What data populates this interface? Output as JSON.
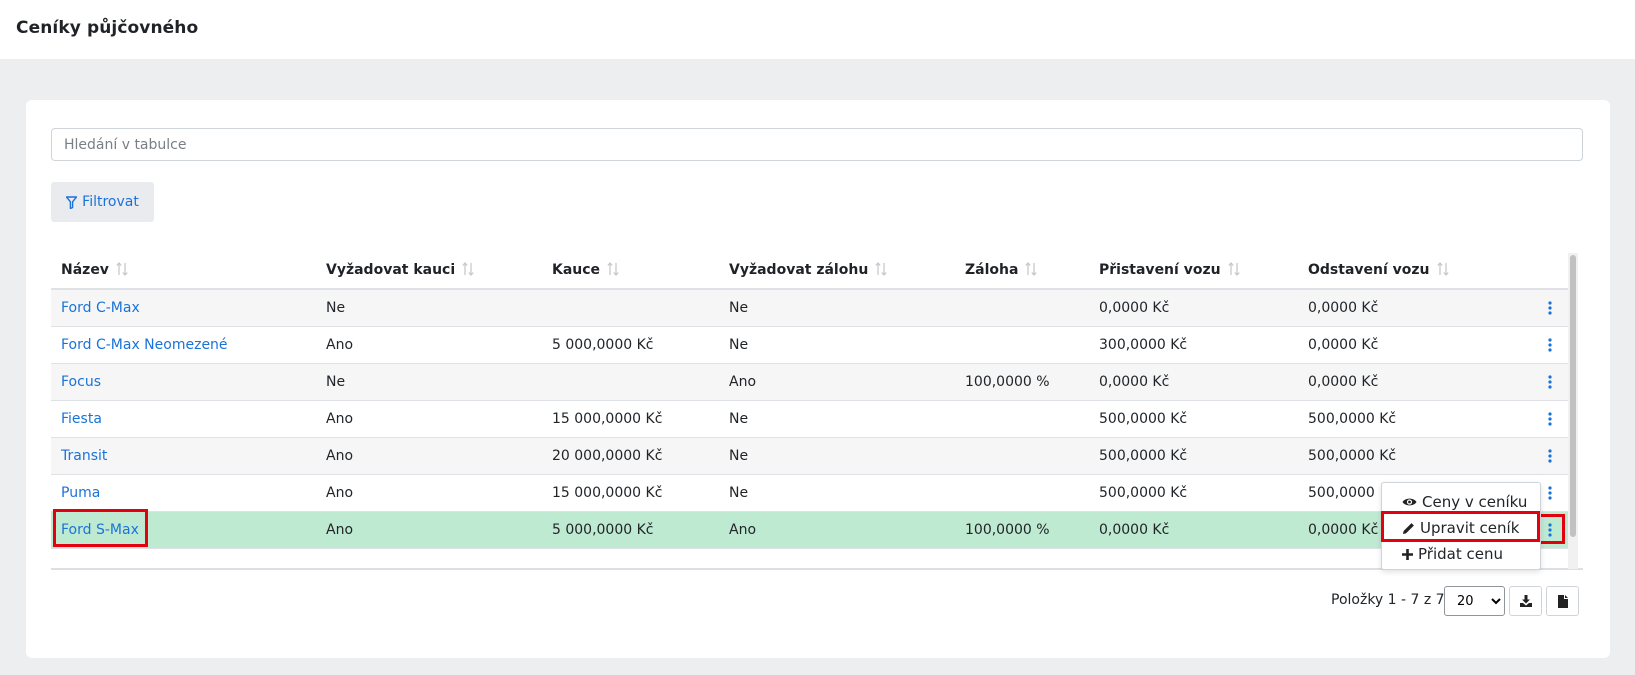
{
  "page": {
    "title": "Ceníky půjčovného"
  },
  "search": {
    "placeholder": "Hledání v tabulce"
  },
  "filter": {
    "label": "Filtrovat"
  },
  "table": {
    "headers": [
      "Název",
      "Vyžadovat kauci",
      "Kauce",
      "Vyžadovat zálohu",
      "Záloha",
      "Přistavení vozu",
      "Odstavení vozu"
    ],
    "rows": [
      [
        "Ford C-Max",
        "Ne",
        "",
        "Ne",
        "",
        "0,0000 Kč",
        "0,0000 Kč"
      ],
      [
        "Ford C-Max Neomezené",
        "Ano",
        "5 000,0000 Kč",
        "Ne",
        "",
        "300,0000 Kč",
        "0,0000 Kč"
      ],
      [
        "Focus",
        "Ne",
        "",
        "Ano",
        "100,0000 %",
        "0,0000 Kč",
        "0,0000 Kč"
      ],
      [
        "Fiesta",
        "Ano",
        "15 000,0000 Kč",
        "Ne",
        "",
        "500,0000 Kč",
        "500,0000 Kč"
      ],
      [
        "Transit",
        "Ano",
        "20 000,0000 Kč",
        "Ne",
        "",
        "500,0000 Kč",
        "500,0000 Kč"
      ],
      [
        "Puma",
        "Ano",
        "15 000,0000 Kč",
        "Ne",
        "",
        "500,0000 Kč",
        "500,0000"
      ],
      [
        "Ford S-Max",
        "Ano",
        "5 000,0000 Kč",
        "Ano",
        "100,0000 %",
        "0,0000 Kč",
        "0,0000 Kč"
      ]
    ],
    "selected_row": 6
  },
  "context_menu": {
    "items": [
      {
        "label": "Ceny v ceníku",
        "icon": "eye-icon"
      },
      {
        "label": "Upravit ceník",
        "icon": "pencil-icon"
      },
      {
        "label": "Přidat cenu",
        "icon": "plus-icon"
      }
    ]
  },
  "pagination": {
    "label": "Položky 1 - 7 z 7",
    "page_size": "20",
    "page_size_options": [
      "20"
    ]
  },
  "colors": {
    "accent": "#1a73d9",
    "selected_row": "#bfead2",
    "highlight": "#e3000f"
  }
}
